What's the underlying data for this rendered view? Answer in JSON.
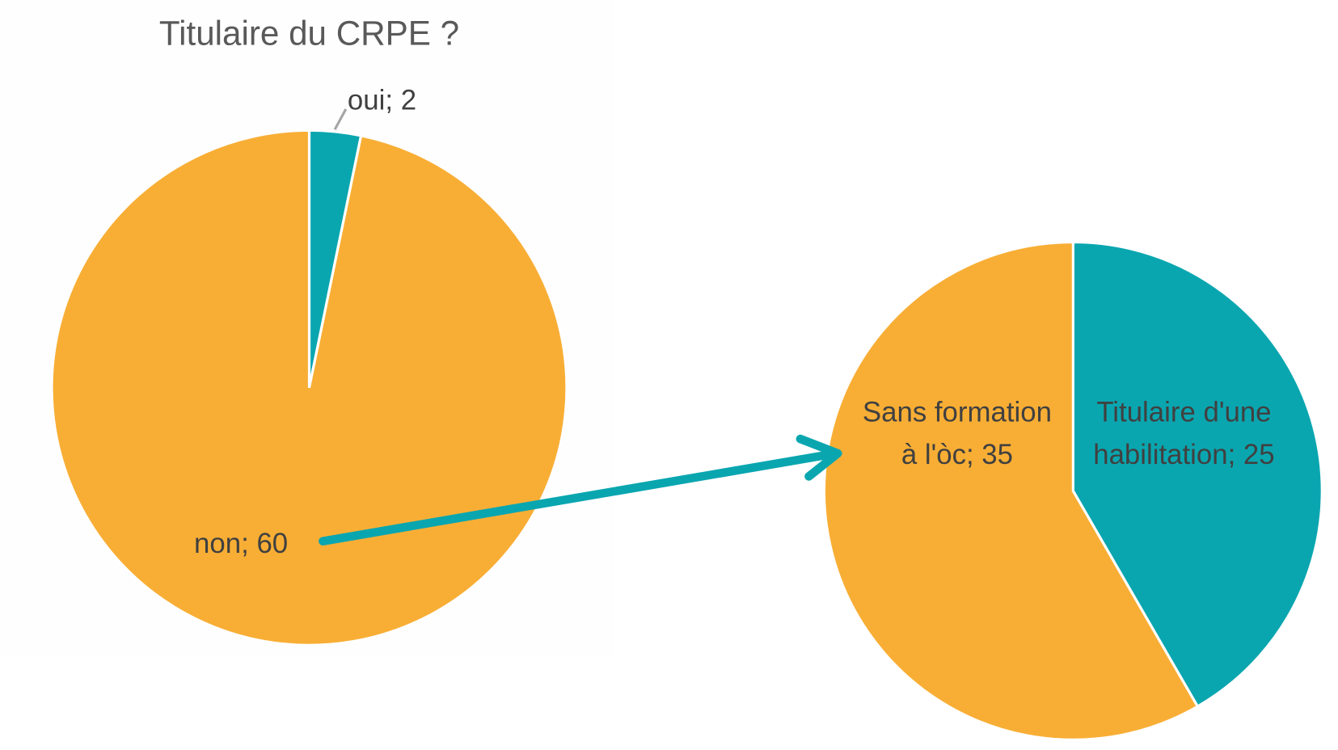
{
  "chart_data": [
    {
      "type": "pie",
      "title": "Titulaire du CRPE ?",
      "values": [
        2,
        60
      ],
      "value_labels": [
        "oui; 2",
        "non; 60"
      ],
      "colors": [
        "#0aa6b0",
        "#f8ae35"
      ]
    },
    {
      "type": "pie",
      "values": [
        25,
        35
      ],
      "value_labels": [
        "Titulaire d'une\nhabilitation; 25",
        "Sans formation\nà l'òc; 35"
      ],
      "colors": [
        "#0aa6b0",
        "#f8ae35"
      ]
    }
  ]
}
